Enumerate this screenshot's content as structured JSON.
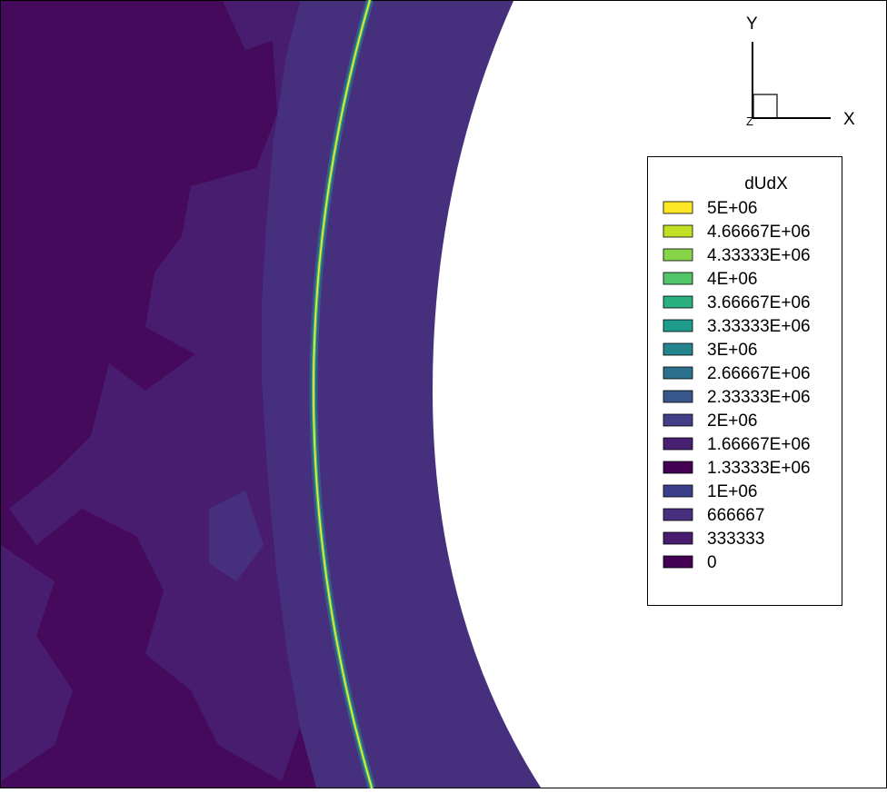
{
  "axis_triad": {
    "x_label": "X",
    "y_label": "Y",
    "z_label": "Z"
  },
  "legend": {
    "title": "dUdX"
  },
  "chart_data": {
    "type": "heatmap",
    "variable": "dUdX",
    "levels": [
      {
        "value": 5000000,
        "label": "5E+06",
        "color": "#fde725"
      },
      {
        "value": 4666670,
        "label": "4.66667E+06",
        "color": "#c2df23"
      },
      {
        "value": 4333330,
        "label": "4.33333E+06",
        "color": "#86d549"
      },
      {
        "value": 4000000,
        "label": "4E+06",
        "color": "#52c569"
      },
      {
        "value": 3666670,
        "label": "3.66667E+06",
        "color": "#2ab07f"
      },
      {
        "value": 3333330,
        "label": "3.33333E+06",
        "color": "#1e9b8a"
      },
      {
        "value": 3000000,
        "label": "3E+06",
        "color": "#25858e"
      },
      {
        "value": 2666670,
        "label": "2.66667E+06",
        "color": "#2d708e"
      },
      {
        "value": 2333330,
        "label": "2.33333E+06",
        "color": "#38588c"
      },
      {
        "value": 2000000,
        "label": "2E+06",
        "color": "#433e85"
      },
      {
        "value": 1666670,
        "label": "1.66667E+06",
        "color": "#482173"
      },
      {
        "value": 1333330,
        "label": "1.33333E+06",
        "color": "#440154"
      },
      {
        "value": 1000000,
        "label": "1E+06",
        "color": "#3b3f8a"
      },
      {
        "value": 666667,
        "label": "666667",
        "color": "#46307e"
      },
      {
        "value": 333333,
        "label": "333333",
        "color": "#481d6f"
      },
      {
        "value": 0,
        "label": "0",
        "color": "#440154"
      }
    ],
    "colors": {
      "background_min": "#460a5d",
      "region_low": "#481d6f",
      "region_mid": "#46307e",
      "wall": "#ffffff",
      "shock_core": "#fde725",
      "shock_mid": "#35b779",
      "shock_edge": "#2a788e"
    }
  }
}
